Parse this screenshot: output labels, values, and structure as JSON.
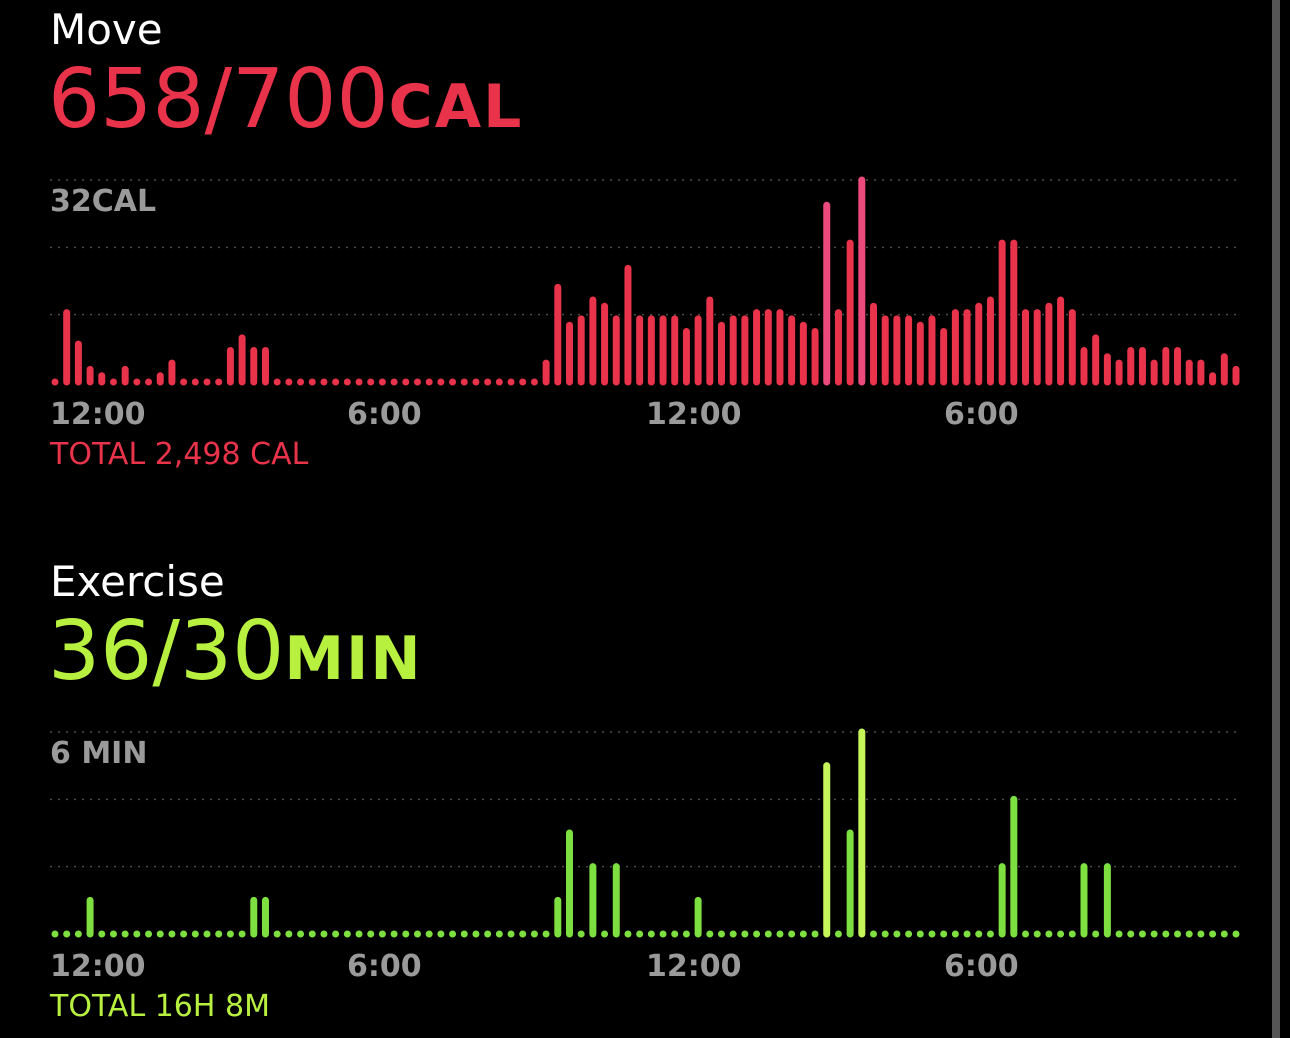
{
  "move": {
    "title": "Move",
    "value": "658/700",
    "unit": "CAL",
    "scale_label": "32CAL",
    "x_labels": [
      "12:00",
      "6:00",
      "12:00",
      "6:00"
    ],
    "total": "TOTAL 2,498 CAL",
    "color": "#E8334A"
  },
  "exercise": {
    "title": "Exercise",
    "value": "36/30",
    "unit": "MIN",
    "scale_label": "6 MIN",
    "x_labels": [
      "12:00",
      "6:00",
      "12:00",
      "6:00"
    ],
    "total": "TOTAL 16H 8M",
    "color": "#B8F040"
  },
  "chart_data": [
    {
      "type": "bar",
      "title": "Move",
      "ylabel": "32CAL",
      "ylim": [
        0,
        32
      ],
      "x_tick_labels": [
        "12:00",
        "6:00",
        "12:00",
        "6:00"
      ],
      "values": [
        0,
        11,
        6,
        2,
        1,
        0,
        2,
        0,
        0,
        1,
        3,
        0,
        0,
        0,
        0,
        5,
        7,
        5,
        5,
        0,
        0,
        0,
        0,
        0,
        0,
        0,
        0,
        0,
        0,
        0,
        0,
        0,
        0,
        0,
        0,
        0,
        0,
        0,
        0,
        0,
        0,
        0,
        3,
        15,
        9,
        10,
        13,
        12,
        10,
        18,
        10,
        10,
        10,
        10,
        8,
        10,
        13,
        9,
        10,
        10,
        11,
        11,
        11,
        10,
        9,
        8,
        28,
        11,
        22,
        32,
        12,
        10,
        10,
        10,
        9,
        10,
        8,
        11,
        11,
        12,
        13,
        22,
        22,
        11,
        11,
        12,
        13,
        11,
        5,
        7,
        4,
        3,
        5,
        5,
        3,
        5,
        5,
        3,
        3,
        1,
        4,
        2
      ]
    },
    {
      "type": "bar",
      "title": "Exercise",
      "ylabel": "6 MIN",
      "ylim": [
        0,
        6
      ],
      "x_tick_labels": [
        "12:00",
        "6:00",
        "12:00",
        "6:00"
      ],
      "values": [
        0,
        0,
        0,
        1,
        0,
        0,
        0,
        0,
        0,
        0,
        0,
        0,
        0,
        0,
        0,
        0,
        0,
        1,
        1,
        0,
        0,
        0,
        0,
        0,
        0,
        0,
        0,
        0,
        0,
        0,
        0,
        0,
        0,
        0,
        0,
        0,
        0,
        0,
        0,
        0,
        0,
        0,
        0,
        1,
        3,
        0,
        2,
        0,
        2,
        0,
        0,
        0,
        0,
        0,
        0,
        1,
        0,
        0,
        0,
        0,
        0,
        0,
        0,
        0,
        0,
        0,
        5,
        0,
        3,
        6,
        0,
        0,
        0,
        0,
        0,
        0,
        0,
        0,
        0,
        0,
        0,
        2,
        4,
        0,
        0,
        0,
        0,
        0,
        2,
        0,
        2,
        0,
        0,
        0,
        0,
        0,
        0,
        0,
        0,
        0,
        0,
        0
      ]
    }
  ]
}
